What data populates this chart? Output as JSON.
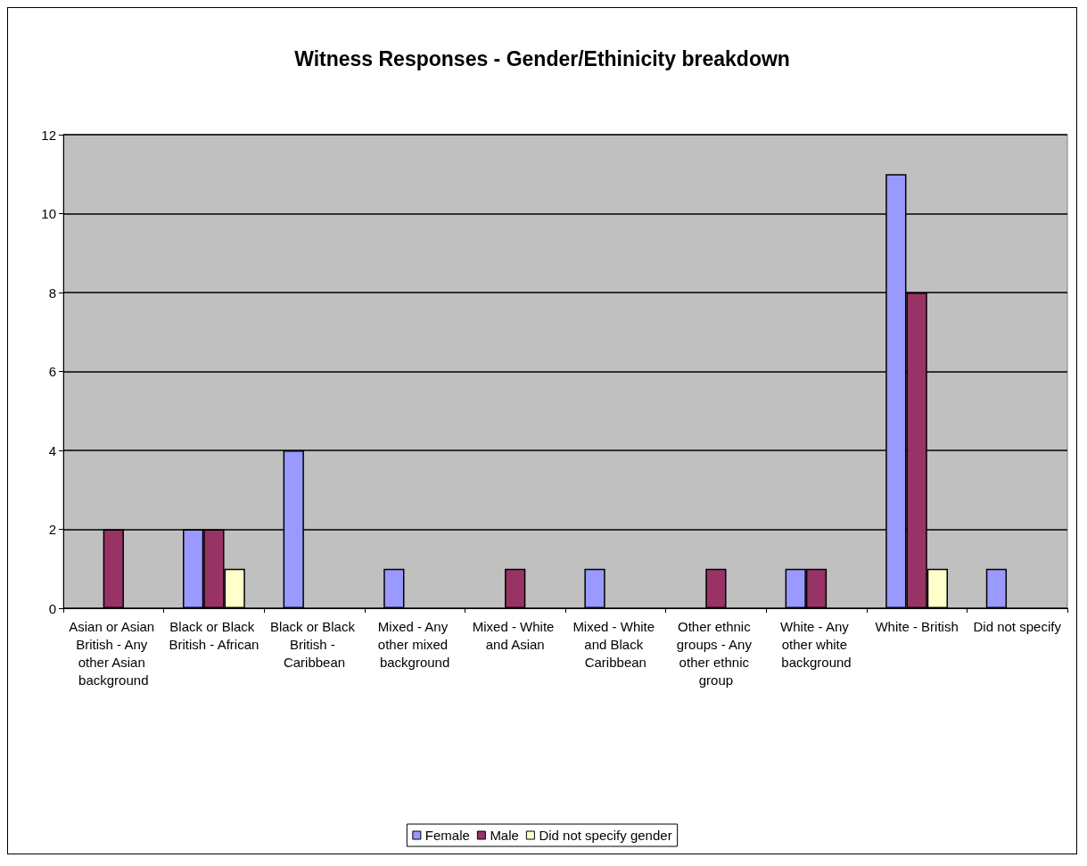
{
  "chart_data": {
    "type": "bar",
    "title": "Witness Responses - Gender/Ethinicity breakdown",
    "categories": [
      "Asian or Asian British - Any other Asian background",
      "Black or Black British - African",
      "Black or Black British - Caribbean",
      "Mixed - Any other mixed background",
      "Mixed - White and Asian",
      "Mixed - White and Black Caribbean",
      "Other ethnic groups - Any other ethnic group",
      "White - Any other white background",
      "White - British",
      "Did not specify"
    ],
    "series": [
      {
        "name": "Female",
        "color": "#9999ff",
        "values": [
          null,
          2,
          4,
          1,
          null,
          1,
          null,
          1,
          11,
          1
        ]
      },
      {
        "name": "Male",
        "color": "#993366",
        "values": [
          2,
          2,
          null,
          null,
          1,
          null,
          1,
          1,
          8,
          null
        ]
      },
      {
        "name": "Did not specify gender",
        "color": "#ffffcc",
        "values": [
          null,
          1,
          null,
          null,
          null,
          null,
          null,
          null,
          1,
          null
        ]
      }
    ],
    "ylim": [
      0,
      12
    ],
    "yticks": [
      0,
      2,
      4,
      6,
      8,
      10,
      12
    ],
    "grid": "y",
    "legend": "bottom"
  }
}
